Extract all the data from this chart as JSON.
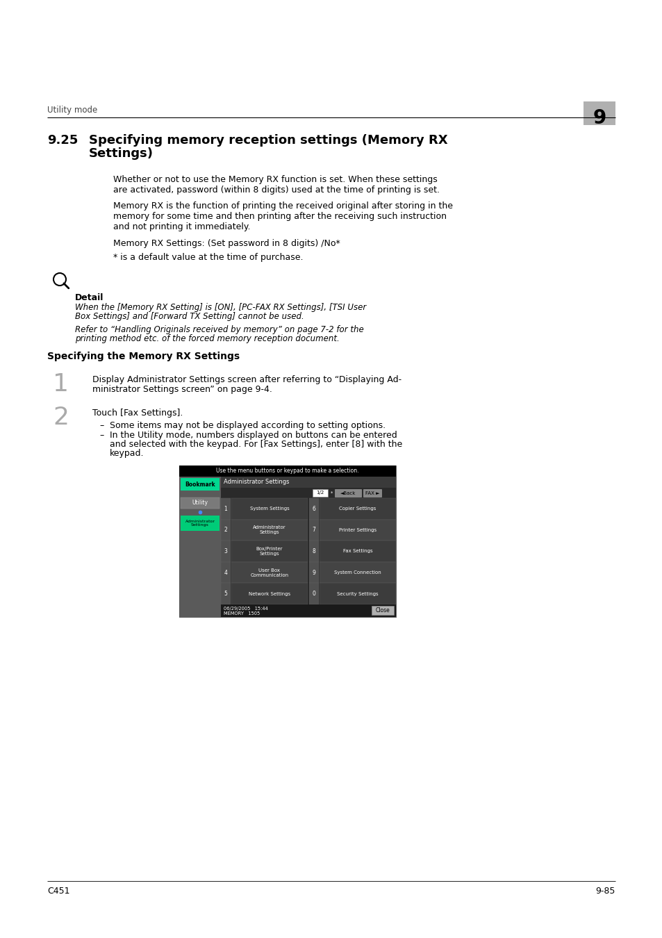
{
  "bg_color": "#ffffff",
  "header_text": "Utility mode",
  "header_number": "9",
  "header_number_bg": "#b0b0b0",
  "section_number": "9.25",
  "section_title_line1": "Specifying memory reception settings (Memory RX",
  "section_title_line2": "Settings)",
  "para1_line1": "Whether or not to use the Memory RX function is set. When these settings",
  "para1_line2": "are activated, password (within 8 digits) used at the time of printing is set.",
  "para2_line1": "Memory RX is the function of printing the received original after storing in the",
  "para2_line2": "memory for some time and then printing after the receiving such instruction",
  "para2_line3": "and not printing it immediately.",
  "para3": "Memory RX Settings: (Set password in 8 digits) /No*",
  "para4": "* is a default value at the time of purchase.",
  "detail_label": "Detail",
  "detail_italic1": "When the [Memory RX Setting] is [ON], [PC-FAX RX Settings], [TSI User",
  "detail_italic2": "Box Settings] and [Forward TX Setting] cannot be used.",
  "detail_italic3": "Refer to “Handling Originals received by memory” on page 7-2 for the",
  "detail_italic4": "printing method etc. of the forced memory reception document.",
  "subhead": "Specifying the Memory RX Settings",
  "step1_num": "1",
  "step1_line1": "Display Administrator Settings screen after referring to “Displaying Ad-",
  "step1_line2": "ministrator Settings screen” on page 9-4.",
  "step2_num": "2",
  "step2_line1": "Touch [Fax Settings].",
  "bullet1": "Some items may not be displayed according to setting options.",
  "bullet2_line1": "In the Utility mode, numbers displayed on buttons can be entered",
  "bullet2_line2": "and selected with the keypad. For [Fax Settings], enter [8] with the",
  "bullet2_line3": "keypad.",
  "footer_left": "C451",
  "footer_right": "9-85",
  "screen_instruction": "Use the menu buttons or keypad to make a selection.",
  "screen_title": "Administrator Settings",
  "screen_pagination": "1/2",
  "screen_back": "◄Back",
  "screen_forward": "FAX ►",
  "screen_close": "Close",
  "screen_bookmark": "Bookmark",
  "screen_utility": "Utility",
  "screen_admin_label": "Administrator\nSettings",
  "screen_rows": [
    {
      "num": "1",
      "left": "System Settings",
      "right_num": "6",
      "right": "Copier Settings"
    },
    {
      "num": "2",
      "left": "Administrator\nSettings",
      "right_num": "7",
      "right": "Printer Settings"
    },
    {
      "num": "3",
      "left": "Box/Printer\nSettings",
      "right_num": "8",
      "right": "Fax Settings"
    },
    {
      "num": "4",
      "left": "User Box\nCommunication",
      "right_num": "9",
      "right": "System Connection"
    },
    {
      "num": "5",
      "left": "Network Settings",
      "right_num": "0",
      "right": "Security Settings"
    }
  ],
  "screen_date": "06/29/2005   15:44",
  "screen_memory": "MEMORY   1505"
}
